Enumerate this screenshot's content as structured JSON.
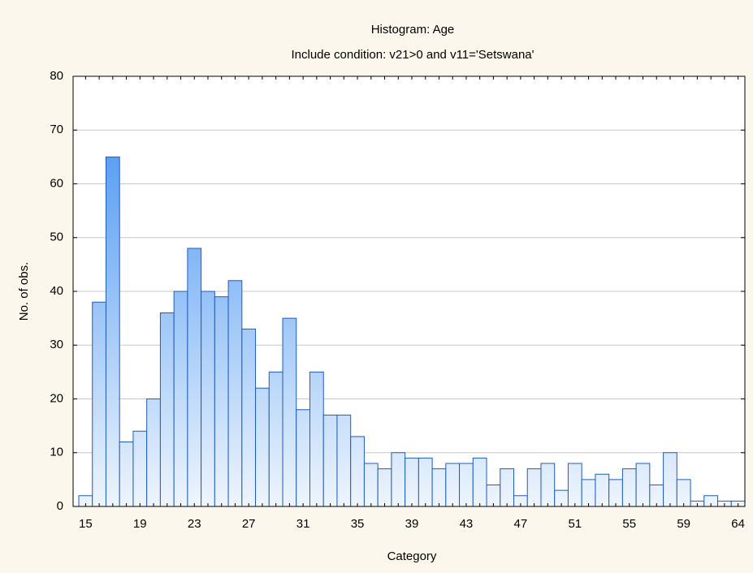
{
  "chart_data": {
    "type": "bar",
    "title": "Histogram: Age",
    "subtitle": "Include condition: v21>0  and v11='Setswana'",
    "x_label": "Category",
    "y_label": "No. of obs.",
    "categories": [
      "15",
      null,
      null,
      null,
      "19",
      null,
      null,
      null,
      "23",
      null,
      null,
      null,
      "27",
      null,
      null,
      null,
      "31",
      null,
      null,
      null,
      "35",
      null,
      null,
      null,
      "39",
      null,
      null,
      null,
      "43",
      null,
      null,
      null,
      "47",
      null,
      null,
      null,
      "51",
      null,
      null,
      null,
      "55",
      null,
      null,
      null,
      "59",
      null,
      null,
      null,
      "64"
    ],
    "values": [
      2,
      38,
      65,
      12,
      14,
      20,
      36,
      40,
      48,
      40,
      39,
      42,
      33,
      22,
      25,
      35,
      18,
      25,
      17,
      17,
      13,
      8,
      7,
      10,
      9,
      9,
      7,
      8,
      8,
      9,
      4,
      7,
      2,
      7,
      8,
      3,
      8,
      5,
      6,
      5,
      7,
      8,
      4,
      10,
      5,
      1,
      2,
      1,
      1
    ],
    "color": "#3a8cf2",
    "ylim": [
      0,
      80
    ],
    "yticks": [
      0,
      10,
      20,
      30,
      40,
      50,
      60,
      70,
      80
    ],
    "grid": true
  }
}
